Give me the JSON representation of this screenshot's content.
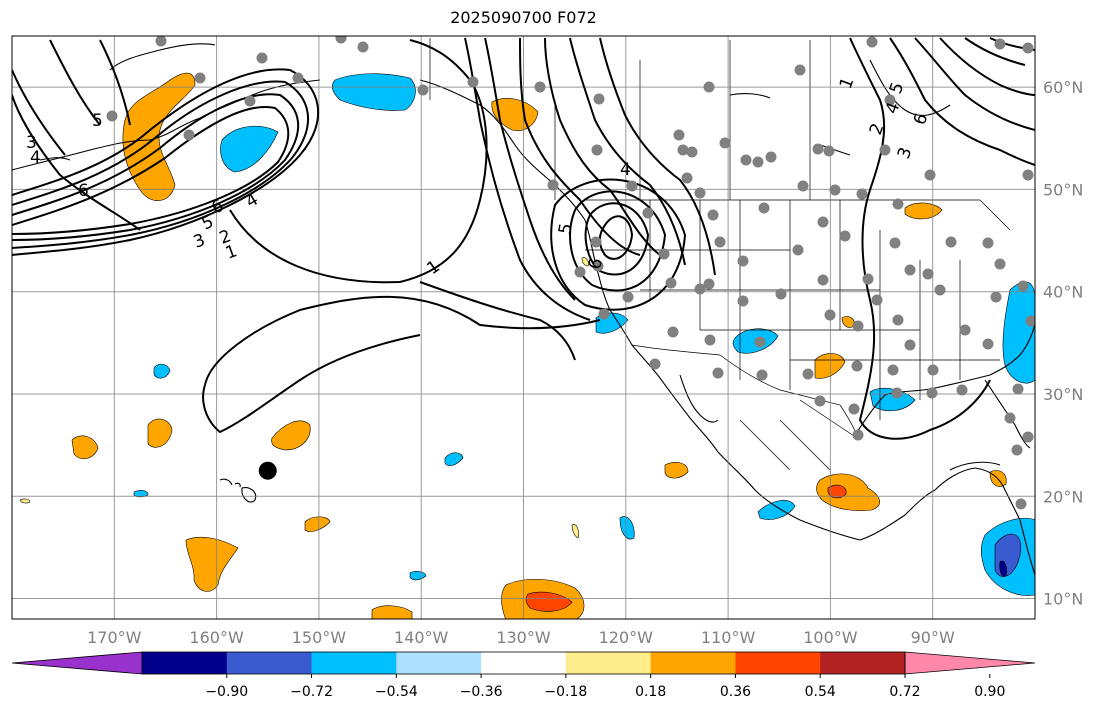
{
  "title": "2025090700 F072",
  "map": {
    "projection": "plate-carree",
    "lon_range": [
      -180,
      -80
    ],
    "lat_range": [
      8,
      65
    ],
    "grid": true,
    "lon_labels": [
      "170°W",
      "160°W",
      "150°W",
      "140°W",
      "130°W",
      "120°W",
      "110°W",
      "100°W",
      "90°W"
    ],
    "lat_labels": [
      "60°N",
      "50°N",
      "40°N",
      "30°N",
      "20°N",
      "10°N"
    ],
    "lon_ticks": [
      -170,
      -160,
      -150,
      -140,
      -130,
      -120,
      -110,
      -100,
      -90
    ],
    "lat_ticks": [
      60,
      50,
      40,
      30,
      20,
      10
    ]
  },
  "colorbar": {
    "colors": [
      "#9932CC",
      "#00008B",
      "#3A5BD0",
      "#00BFFF",
      "#ADDFFF",
      "#FFFFFF",
      "#FFEC8B",
      "#FFA500",
      "#FF4500",
      "#B22222",
      "#FF88AA"
    ],
    "tick_labels": [
      "−0.90",
      "−0.72",
      "−0.54",
      "−0.36",
      "−0.18",
      "0.18",
      "0.36",
      "0.54",
      "0.72",
      "0.90"
    ],
    "extend": "both"
  },
  "contour_labels": [
    "1",
    "1",
    "2",
    "3",
    "4",
    "5",
    "6",
    "3",
    "4",
    "5",
    "6",
    "4",
    "5",
    "6",
    "1",
    "2",
    "3",
    "4",
    "5",
    "6"
  ],
  "station_dots_color": "#808080",
  "marker": {
    "lon": -155,
    "lat": 22.5,
    "color": "#000000"
  }
}
